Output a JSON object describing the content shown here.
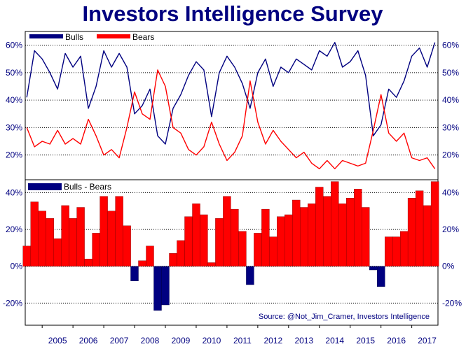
{
  "title": "Investors Intelligence Survey",
  "source": "Source: @Not_Jim_Cramer, Investors Intelligence",
  "colors": {
    "bulls": "#000080",
    "bears": "#ff0000",
    "spread_pos": "#ff0000",
    "spread_neg": "#000080",
    "text": "#000080",
    "grid": "#000000"
  },
  "chart_data": [
    {
      "type": "line",
      "title": "",
      "legend": [
        "Bulls",
        "Bears"
      ],
      "legend_placement": "top-left",
      "ylim": [
        11,
        65
      ],
      "yticks": [
        "20%",
        "30%",
        "40%",
        "50%",
        "60%"
      ],
      "ytick_values": [
        20,
        30,
        40,
        50,
        60
      ],
      "grid": true,
      "x_years": [
        2004.5,
        2004.75,
        2005.0,
        2005.25,
        2005.5,
        2005.75,
        2006.0,
        2006.25,
        2006.5,
        2006.75,
        2007.0,
        2007.25,
        2007.5,
        2007.75,
        2008.0,
        2008.25,
        2008.5,
        2008.75,
        2009.0,
        2009.25,
        2009.5,
        2009.75,
        2010.0,
        2010.25,
        2010.5,
        2010.75,
        2011.0,
        2011.25,
        2011.5,
        2011.75,
        2012.0,
        2012.25,
        2012.5,
        2012.75,
        2013.0,
        2013.25,
        2013.5,
        2013.75,
        2014.0,
        2014.25,
        2014.5,
        2014.75,
        2015.0,
        2015.25,
        2015.5,
        2015.75,
        2016.0,
        2016.25,
        2016.5,
        2016.75,
        2017.0,
        2017.25,
        2017.5,
        2017.75
      ],
      "series": [
        {
          "name": "Bulls",
          "values": [
            41,
            58,
            55,
            50,
            44,
            57,
            52,
            56,
            37,
            45,
            58,
            52,
            57,
            52,
            35,
            38,
            44,
            27,
            24,
            37,
            42,
            49,
            54,
            51,
            34,
            50,
            56,
            52,
            46,
            37,
            50,
            55,
            45,
            52,
            50,
            55,
            53,
            51,
            58,
            56,
            61,
            52,
            54,
            58,
            49,
            27,
            31,
            44,
            41,
            47,
            56,
            59,
            52,
            61
          ]
        },
        {
          "name": "Bears",
          "values": [
            30,
            23,
            25,
            24,
            29,
            24,
            26,
            24,
            33,
            27,
            20,
            22,
            19,
            30,
            43,
            35,
            33,
            51,
            45,
            30,
            28,
            22,
            20,
            23,
            32,
            24,
            18,
            21,
            27,
            47,
            32,
            24,
            29,
            25,
            22,
            19,
            21,
            17,
            15,
            18,
            15,
            18,
            17,
            16,
            17,
            29,
            42,
            28,
            25,
            28,
            19,
            18,
            19,
            15
          ]
        }
      ]
    },
    {
      "type": "area",
      "title": "",
      "legend": [
        "Bulls - Bears"
      ],
      "legend_placement": "top-left",
      "ylim": [
        -32,
        47
      ],
      "yticks": [
        "-20%",
        "0%",
        "20%",
        "40%"
      ],
      "ytick_values": [
        -20,
        0,
        20,
        40
      ],
      "grid": true,
      "xticks": [
        "2005",
        "2006",
        "2007",
        "2008",
        "2009",
        "2010",
        "2011",
        "2012",
        "2013",
        "2014",
        "2015",
        "2016",
        "2017"
      ],
      "xtick_values": [
        2005,
        2006,
        2007,
        2008,
        2009,
        2010,
        2011,
        2012,
        2013,
        2014,
        2015,
        2016,
        2017
      ]
    }
  ]
}
